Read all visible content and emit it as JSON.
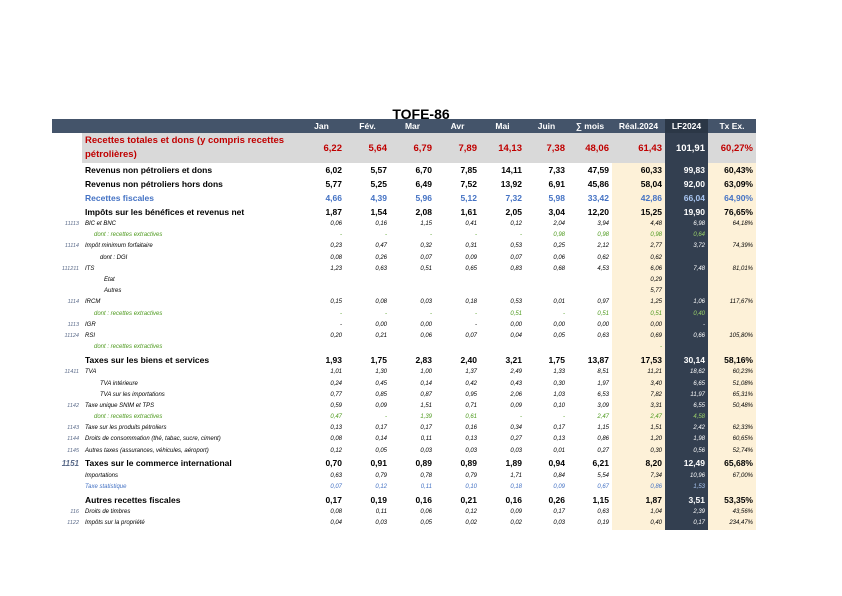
{
  "title": "TOFE-86",
  "headers": [
    "",
    "",
    "Jan",
    "Fév.",
    "Mar",
    "Avr",
    "Mai",
    "Juin",
    "∑ mois",
    "Réal.2024",
    "LF2024",
    "Tx Ex."
  ],
  "rows": [
    {
      "style": "big",
      "code": "",
      "label": "Recettes totales et dons (y compris recettes pétrolières)",
      "v": [
        "6,22",
        "5,64",
        "6,79",
        "7,89",
        "14,13",
        "7,38",
        "48,06",
        "61,43",
        "101,91",
        "60,27%"
      ]
    },
    {
      "style": "bold",
      "code": "",
      "label": "Revenus non pétroliers et dons",
      "v": [
        "6,02",
        "5,57",
        "6,70",
        "7,85",
        "14,11",
        "7,33",
        "47,59",
        "60,33",
        "99,83",
        "60,43%"
      ]
    },
    {
      "style": "bold",
      "code": "",
      "label": "Revenus non pétroliers hors dons",
      "v": [
        "5,77",
        "5,25",
        "6,49",
        "7,52",
        "13,92",
        "6,91",
        "45,86",
        "58,04",
        "92,00",
        "63,09%"
      ]
    },
    {
      "style": "bold blue",
      "code": "",
      "label": "Recettes fiscales",
      "v": [
        "4,66",
        "4,39",
        "5,96",
        "5,12",
        "7,32",
        "5,98",
        "33,42",
        "42,86",
        "66,04",
        "64,90%"
      ]
    },
    {
      "style": "sub",
      "code": "",
      "label": "Impôts sur les bénéfices et revenus net",
      "v": [
        "1,87",
        "1,54",
        "2,08",
        "1,61",
        "2,05",
        "3,04",
        "12,20",
        "15,25",
        "19,90",
        "76,65%"
      ]
    },
    {
      "style": "ital",
      "code": "11113",
      "label": "BIC et BNC",
      "v": [
        "0,06",
        "0,16",
        "1,15",
        "0,41",
        "0,12",
        "2,04",
        "3,94",
        "4,48",
        "6,98",
        "64,18%"
      ]
    },
    {
      "style": "ital green ind3",
      "code": "",
      "label": "dont : recettes extractives",
      "v": [
        "-",
        "-",
        "-",
        "-",
        "-",
        "0,98",
        "0,98",
        "0,98",
        "0,64",
        ""
      ]
    },
    {
      "style": "ital",
      "code": "11114",
      "label": "Impôt minimum forfaitaire",
      "v": [
        "0,23",
        "0,47",
        "0,32",
        "0,31",
        "0,53",
        "0,25",
        "2,12",
        "2,77",
        "3,72",
        "74,39%"
      ]
    },
    {
      "style": "ital ind1",
      "code": "",
      "label": "dont : DGI",
      "v": [
        "0,08",
        "0,26",
        "0,07",
        "0,09",
        "0,07",
        "0,06",
        "0,62",
        "0,62",
        "",
        ""
      ]
    },
    {
      "style": "ital",
      "code": "111211",
      "label": "ITS",
      "v": [
        "1,23",
        "0,63",
        "0,51",
        "0,65",
        "0,83",
        "0,68",
        "4,53",
        "6,06",
        "7,48",
        "81,01%"
      ]
    },
    {
      "style": "ital ind2",
      "code": "",
      "label": "Etat",
      "v": [
        "",
        "",
        "",
        "",
        "",
        "",
        "",
        "0,29",
        "",
        ""
      ]
    },
    {
      "style": "ital ind2",
      "code": "",
      "label": "Autres",
      "v": [
        "",
        "",
        "",
        "",
        "",
        "",
        "",
        "5,77",
        "",
        ""
      ]
    },
    {
      "style": "ital",
      "code": "1114",
      "label": "IRCM",
      "v": [
        "0,15",
        "0,08",
        "0,03",
        "0,18",
        "0,53",
        "0,01",
        "0,97",
        "1,25",
        "1,06",
        "117,67%"
      ]
    },
    {
      "style": "ital green ind3",
      "code": "",
      "label": "dont : recettes extractives",
      "v": [
        "-",
        "-",
        "-",
        "-",
        "0,51",
        "-",
        "0,51",
        "0,51",
        "0,40",
        ""
      ]
    },
    {
      "style": "ital",
      "code": "1113",
      "label": "IGR",
      "v": [
        "-",
        "0,00",
        "0,00",
        "-",
        "0,00",
        "0,00",
        "0,00",
        "0,00",
        "-",
        ""
      ]
    },
    {
      "style": "ital",
      "code": "11124",
      "label": "RSI",
      "v": [
        "0,20",
        "0,21",
        "0,06",
        "0,07",
        "0,04",
        "0,05",
        "0,63",
        "0,69",
        "0,66",
        "105,80%"
      ]
    },
    {
      "style": "ital green ind3",
      "code": "",
      "label": "dont : recettes extractives",
      "v": [
        "",
        "",
        "",
        "",
        "",
        "",
        "",
        "-",
        "",
        ""
      ]
    },
    {
      "style": "sub",
      "code": "",
      "label": "Taxes sur les biens et services",
      "v": [
        "1,93",
        "1,75",
        "2,83",
        "2,40",
        "3,21",
        "1,75",
        "13,87",
        "17,53",
        "30,14",
        "58,16%"
      ]
    },
    {
      "style": "ital",
      "code": "11411",
      "label": "TVA",
      "v": [
        "1,01",
        "1,30",
        "1,00",
        "1,37",
        "2,49",
        "1,33",
        "8,51",
        "11,21",
        "18,62",
        "60,23%"
      ]
    },
    {
      "style": "ital ind1",
      "code": "",
      "label": "TVA intérieure",
      "v": [
        "0,24",
        "0,45",
        "0,14",
        "0,42",
        "0,43",
        "0,30",
        "1,97",
        "3,40",
        "6,65",
        "51,08%"
      ]
    },
    {
      "style": "ital ind1",
      "code": "",
      "label": "TVA sur les importations",
      "v": [
        "0,77",
        "0,85",
        "0,87",
        "0,95",
        "2,06",
        "1,03",
        "6,53",
        "7,82",
        "11,97",
        "65,31%"
      ]
    },
    {
      "style": "ital",
      "code": "1142",
      "label": "Taxe unique SNIM et TPS",
      "v": [
        "0,59",
        "0,09",
        "1,51",
        "0,71",
        "0,09",
        "0,10",
        "3,09",
        "3,31",
        "6,55",
        "50,48%"
      ]
    },
    {
      "style": "ital green ind3",
      "code": "",
      "label": "dont : recettes extractives",
      "v": [
        "0,47",
        "-",
        "1,39",
        "0,61",
        "-",
        "-",
        "2,47",
        "2,47",
        "4,58",
        ""
      ]
    },
    {
      "style": "ital",
      "code": "1143",
      "label": "Taxe sur les produits pétroliers",
      "v": [
        "0,13",
        "0,17",
        "0,17",
        "0,16",
        "0,34",
        "0,17",
        "1,15",
        "1,51",
        "2,42",
        "62,33%"
      ]
    },
    {
      "style": "ital",
      "code": "1144",
      "label": "Droits de consommation (thé, tabac, sucre, ciment)",
      "v": [
        "0,08",
        "0,14",
        "0,11",
        "0,13",
        "0,27",
        "0,13",
        "0,86",
        "1,20",
        "1,98",
        "60,65%"
      ]
    },
    {
      "style": "ital",
      "code": "1145",
      "label": "Autres taxes (assurances, véhicules, aéroport)",
      "v": [
        "0,12",
        "0,05",
        "0,03",
        "0,03",
        "0,03",
        "0,01",
        "0,27",
        "0,30",
        "0,56",
        "52,74%"
      ]
    },
    {
      "style": "sub",
      "code": "1151",
      "label": "Taxes sur le commerce international",
      "v": [
        "0,70",
        "0,91",
        "0,89",
        "0,89",
        "1,89",
        "0,94",
        "6,21",
        "8,20",
        "12,49",
        "65,68%"
      ]
    },
    {
      "style": "ital",
      "code": "",
      "label": "Importations",
      "v": [
        "0,63",
        "0,79",
        "0,78",
        "0,79",
        "1,71",
        "0,84",
        "5,54",
        "7,34",
        "10,96",
        "67,00%"
      ]
    },
    {
      "style": "ital blue",
      "code": "",
      "label": "Taxe statistique",
      "v": [
        "0,07",
        "0,12",
        "0,11",
        "0,10",
        "0,18",
        "0,09",
        "0,67",
        "0,86",
        "1,53",
        ""
      ]
    },
    {
      "style": "sub",
      "code": "",
      "label": "Autres recettes fiscales",
      "v": [
        "0,17",
        "0,19",
        "0,16",
        "0,21",
        "0,16",
        "0,26",
        "1,15",
        "1,87",
        "3,51",
        "53,35%"
      ]
    },
    {
      "style": "ital",
      "code": "116",
      "label": "Droits de timbres",
      "v": [
        "0,08",
        "0,11",
        "0,06",
        "0,12",
        "0,09",
        "0,17",
        "0,63",
        "1,04",
        "2,39",
        "43,56%"
      ]
    },
    {
      "style": "ital",
      "code": "1122",
      "label": "Impôts sur la propriété",
      "v": [
        "0,04",
        "0,03",
        "0,05",
        "0,02",
        "0,02",
        "0,03",
        "0,19",
        "0,40",
        "0,17",
        "234,47%"
      ]
    }
  ]
}
